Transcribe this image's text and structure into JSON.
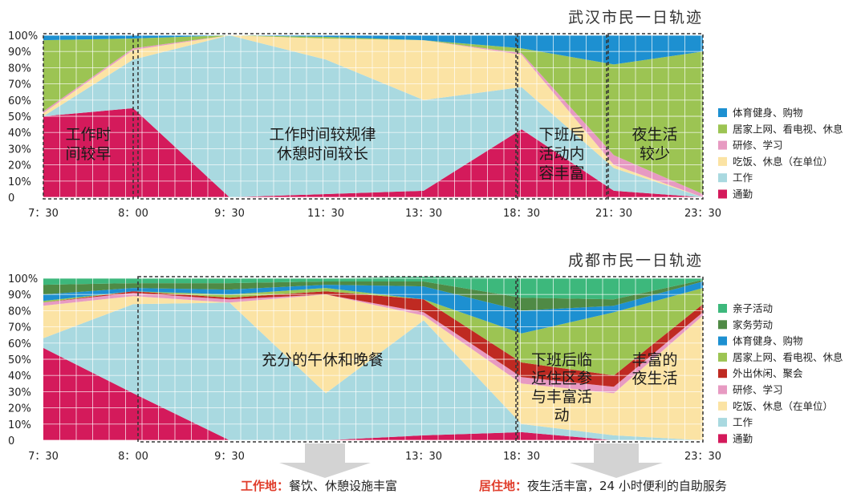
{
  "chart_data": [
    {
      "type": "area",
      "stacked": true,
      "title": "武汉市民一日轨迹",
      "categories": [
        "7：30",
        "8：00",
        "9：30",
        "11：30",
        "13：30",
        "18：30",
        "21：30",
        "23：30"
      ],
      "ylim": [
        0,
        100
      ],
      "yticks": [
        "0",
        "10%",
        "20%",
        "30%",
        "40%",
        "50%",
        "60%",
        "70%",
        "80%",
        "90%",
        "100%"
      ],
      "grid": true,
      "legend_position": "right",
      "series": [
        {
          "name": "通勤",
          "color": "#d41a5b",
          "values": [
            50,
            55,
            0,
            2,
            4,
            42,
            4,
            0
          ]
        },
        {
          "name": "工作",
          "color": "#a9d9e0",
          "values": [
            0,
            30,
            100,
            83,
            56,
            26,
            14,
            0
          ]
        },
        {
          "name": "吃饭、休息（在单位）",
          "color": "#fbe3a4",
          "values": [
            2,
            6,
            0,
            13,
            37,
            20,
            2,
            0
          ]
        },
        {
          "name": "研修、学习",
          "color": "#e79ac2",
          "values": [
            1,
            1,
            0,
            0,
            0,
            1,
            6,
            2
          ]
        },
        {
          "name": "居家上网、看电视、休息",
          "color": "#9cc453",
          "values": [
            44,
            6,
            0,
            1,
            0,
            3,
            56,
            88
          ]
        },
        {
          "name": "体育健身、购物",
          "color": "#1d90d1",
          "values": [
            3,
            2,
            0,
            1,
            3,
            8,
            18,
            10
          ]
        }
      ],
      "annotations": [
        "工作时间较早",
        "工作时间较规律休憩时间较长",
        "下班后活动内容丰富",
        "夜生活较少"
      ]
    },
    {
      "type": "area",
      "stacked": true,
      "title": "成都市民一日轨迹",
      "categories": [
        "7：30",
        "8：00",
        "9：30",
        "11：30",
        "13：30",
        "18：30",
        "21：30",
        "23：30"
      ],
      "ylim": [
        0,
        100
      ],
      "yticks": [
        "0",
        "10%",
        "20%",
        "30%",
        "40%",
        "50%",
        "60%",
        "70%",
        "80%",
        "90%",
        "100%"
      ],
      "grid": true,
      "legend_position": "right",
      "series": [
        {
          "name": "通勤",
          "color": "#d41a5b",
          "values": [
            57,
            29,
            0,
            0,
            3,
            5,
            0,
            0
          ]
        },
        {
          "name": "工作",
          "color": "#a9d9e0",
          "values": [
            6,
            55,
            85,
            29,
            71,
            5,
            3,
            0
          ]
        },
        {
          "name": "吃饭、休息（在单位）",
          "color": "#fbe3a4",
          "values": [
            20,
            5,
            0,
            61,
            3,
            25,
            26,
            77
          ]
        },
        {
          "name": "研修、学习",
          "color": "#e79ac2",
          "values": [
            2,
            2,
            2,
            0,
            2,
            4,
            4,
            2
          ]
        },
        {
          "name": "外出休闲、聚会",
          "color": "#bf2a22",
          "values": [
            0,
            1,
            1,
            2,
            8,
            9,
            7,
            5
          ]
        },
        {
          "name": "居家上网、看电视、休息",
          "color": "#9cc453",
          "values": [
            1,
            0,
            2,
            2,
            0,
            18,
            39,
            10
          ]
        },
        {
          "name": "体育健身、购物",
          "color": "#1d90d1",
          "values": [
            4,
            2,
            3,
            2,
            8,
            14,
            4,
            4
          ]
        },
        {
          "name": "家务劳动",
          "color": "#4f8a45",
          "values": [
            6,
            3,
            4,
            2,
            3,
            8,
            4,
            1
          ]
        },
        {
          "name": "亲子活动",
          "color": "#3db87c",
          "values": [
            4,
            3,
            3,
            2,
            3,
            12,
            13,
            1
          ]
        }
      ],
      "annotations": [
        "充分的午休和晚餐",
        "下班后临近住区参与丰富活动",
        "丰富的夜生活"
      ]
    }
  ],
  "bottom": {
    "work_key": "工作地：",
    "work_text": "餐饮、休憩设施丰富",
    "home_key": "居住地：",
    "home_text": "夜生活丰富，24 小时便利的自助服务"
  }
}
